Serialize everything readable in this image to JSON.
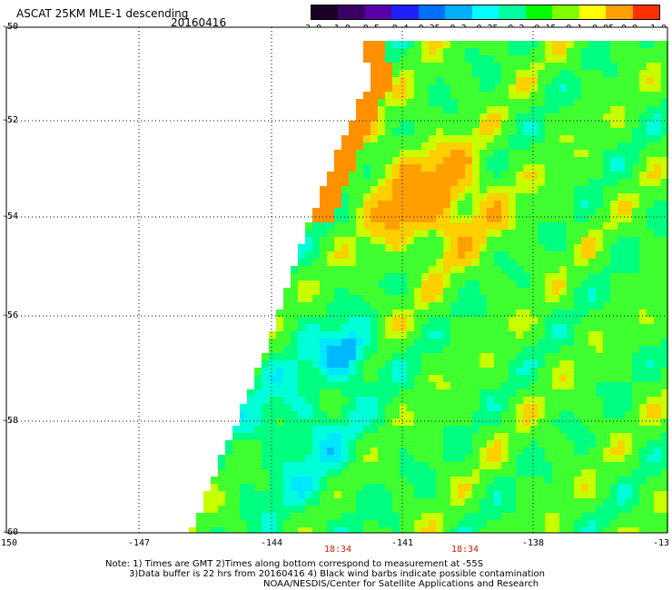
{
  "header": {
    "title": "ASCAT 25KM MLE-1 descending",
    "date": "20160416"
  },
  "colorbar": {
    "labels": [
      "-3.0",
      "-1.0",
      "-0.5",
      "-0.4",
      "-0.35",
      "-0.3",
      "-0.25",
      "-0.2",
      "-0.15",
      "-0.1",
      "-0.05",
      "0.0",
      "1.0"
    ],
    "colors": [
      "#1a0022",
      "#3a0066",
      "#5a00aa",
      "#2020ff",
      "#0070ff",
      "#00b0ff",
      "#00ffff",
      "#00ffa0",
      "#00ff00",
      "#80ff00",
      "#ffff00",
      "#ffa000",
      "#ff3000"
    ]
  },
  "axes": {
    "lat_labels": [
      "-50",
      "-52",
      "-54",
      "-56",
      "-58",
      "-60"
    ],
    "lon_labels": [
      "-150",
      "-147",
      "-144",
      "-141",
      "-138",
      "-13"
    ]
  },
  "times": [
    "18:34",
    "18:34"
  ],
  "notes": {
    "line1": "Note: 1) Times are GMT 2)Times along bottom correspond to measurement at -55S",
    "line2": "3)Data buffer is 22 hrs from 20160416 4) Black wind barbs indicate possible contamination",
    "line3": "NOAA/NESDIS/Center for Satellite Applications and Research"
  }
}
